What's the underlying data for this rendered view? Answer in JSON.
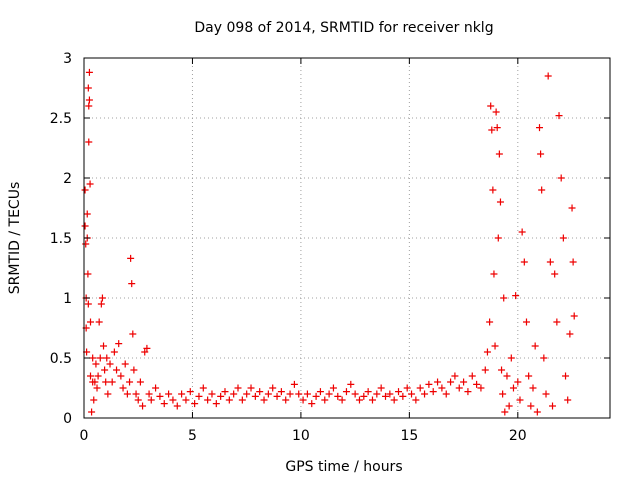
{
  "chart_data": {
    "type": "scatter",
    "title": "Day 098 of 2014, SRMTID for receiver nklg",
    "xlabel": "GPS time / hours",
    "ylabel": "SRMTID / TECUs",
    "xlim": [
      0,
      24.25
    ],
    "ylim": [
      0,
      3
    ],
    "x_ticks": [
      0,
      5,
      10,
      15,
      20
    ],
    "y_ticks": [
      0,
      0.5,
      1,
      1.5,
      2,
      2.5,
      3
    ],
    "x_tick_labels": [
      "0",
      "5",
      "10",
      "15",
      "20"
    ],
    "y_tick_labels": [
      "0",
      "0.5",
      "1",
      "1.5",
      "2",
      "2.5",
      "3"
    ],
    "grid": true,
    "marker": "plus",
    "color": "#ee0000",
    "series": [
      {
        "name": "SRMTID",
        "points": [
          [
            0.05,
            1.9
          ],
          [
            0.05,
            1.6
          ],
          [
            0.08,
            1.45
          ],
          [
            0.1,
            1.0
          ],
          [
            0.1,
            0.75
          ],
          [
            0.12,
            0.55
          ],
          [
            0.15,
            1.7
          ],
          [
            0.15,
            1.5
          ],
          [
            0.18,
            1.2
          ],
          [
            0.2,
            0.95
          ],
          [
            0.2,
            2.75
          ],
          [
            0.22,
            2.6
          ],
          [
            0.22,
            2.3
          ],
          [
            0.25,
            2.88
          ],
          [
            0.25,
            2.65
          ],
          [
            0.28,
            1.95
          ],
          [
            0.3,
            0.8
          ],
          [
            0.3,
            0.35
          ],
          [
            0.35,
            0.05
          ],
          [
            0.4,
            0.3
          ],
          [
            0.4,
            0.5
          ],
          [
            0.45,
            0.15
          ],
          [
            0.5,
            0.3
          ],
          [
            0.55,
            0.45
          ],
          [
            0.6,
            0.25
          ],
          [
            0.65,
            0.35
          ],
          [
            0.7,
            0.8
          ],
          [
            0.75,
            0.5
          ],
          [
            0.8,
            0.95
          ],
          [
            0.85,
            1.0
          ],
          [
            0.9,
            0.6
          ],
          [
            0.95,
            0.4
          ],
          [
            1.0,
            0.3
          ],
          [
            1.05,
            0.5
          ],
          [
            1.1,
            0.2
          ],
          [
            1.2,
            0.45
          ],
          [
            1.3,
            0.3
          ],
          [
            1.4,
            0.55
          ],
          [
            1.5,
            0.4
          ],
          [
            1.6,
            0.62
          ],
          [
            1.7,
            0.35
          ],
          [
            1.8,
            0.25
          ],
          [
            1.9,
            0.45
          ],
          [
            2.0,
            0.2
          ],
          [
            2.1,
            0.3
          ],
          [
            2.15,
            1.33
          ],
          [
            2.2,
            1.12
          ],
          [
            2.25,
            0.7
          ],
          [
            2.3,
            0.4
          ],
          [
            2.4,
            0.2
          ],
          [
            2.5,
            0.15
          ],
          [
            2.6,
            0.3
          ],
          [
            2.7,
            0.1
          ],
          [
            2.8,
            0.55
          ],
          [
            2.9,
            0.58
          ],
          [
            3.0,
            0.2
          ],
          [
            3.1,
            0.15
          ],
          [
            3.3,
            0.25
          ],
          [
            3.5,
            0.18
          ],
          [
            3.7,
            0.12
          ],
          [
            3.9,
            0.2
          ],
          [
            4.1,
            0.15
          ],
          [
            4.3,
            0.1
          ],
          [
            4.5,
            0.2
          ],
          [
            4.7,
            0.15
          ],
          [
            4.9,
            0.22
          ],
          [
            5.1,
            0.12
          ],
          [
            5.3,
            0.18
          ],
          [
            5.5,
            0.25
          ],
          [
            5.7,
            0.15
          ],
          [
            5.9,
            0.2
          ],
          [
            6.1,
            0.12
          ],
          [
            6.3,
            0.18
          ],
          [
            6.5,
            0.22
          ],
          [
            6.7,
            0.15
          ],
          [
            6.9,
            0.2
          ],
          [
            7.1,
            0.25
          ],
          [
            7.3,
            0.15
          ],
          [
            7.5,
            0.2
          ],
          [
            7.7,
            0.25
          ],
          [
            7.9,
            0.18
          ],
          [
            8.1,
            0.22
          ],
          [
            8.3,
            0.15
          ],
          [
            8.5,
            0.2
          ],
          [
            8.7,
            0.25
          ],
          [
            8.9,
            0.18
          ],
          [
            9.1,
            0.22
          ],
          [
            9.3,
            0.15
          ],
          [
            9.5,
            0.2
          ],
          [
            9.7,
            0.28
          ],
          [
            9.9,
            0.2
          ],
          [
            10.1,
            0.15
          ],
          [
            10.3,
            0.2
          ],
          [
            10.5,
            0.12
          ],
          [
            10.7,
            0.18
          ],
          [
            10.9,
            0.22
          ],
          [
            11.1,
            0.15
          ],
          [
            11.3,
            0.2
          ],
          [
            11.5,
            0.25
          ],
          [
            11.7,
            0.18
          ],
          [
            11.9,
            0.15
          ],
          [
            12.1,
            0.22
          ],
          [
            12.3,
            0.28
          ],
          [
            12.5,
            0.2
          ],
          [
            12.7,
            0.15
          ],
          [
            12.9,
            0.18
          ],
          [
            13.1,
            0.22
          ],
          [
            13.3,
            0.15
          ],
          [
            13.5,
            0.2
          ],
          [
            13.7,
            0.25
          ],
          [
            13.9,
            0.18
          ],
          [
            14.1,
            0.2
          ],
          [
            14.3,
            0.15
          ],
          [
            14.5,
            0.22
          ],
          [
            14.7,
            0.18
          ],
          [
            14.9,
            0.25
          ],
          [
            15.1,
            0.2
          ],
          [
            15.3,
            0.15
          ],
          [
            15.5,
            0.25
          ],
          [
            15.7,
            0.2
          ],
          [
            15.9,
            0.28
          ],
          [
            16.1,
            0.22
          ],
          [
            16.3,
            0.3
          ],
          [
            16.5,
            0.25
          ],
          [
            16.7,
            0.2
          ],
          [
            16.9,
            0.3
          ],
          [
            17.1,
            0.35
          ],
          [
            17.3,
            0.25
          ],
          [
            17.5,
            0.3
          ],
          [
            17.7,
            0.22
          ],
          [
            17.9,
            0.35
          ],
          [
            18.1,
            0.28
          ],
          [
            18.3,
            0.25
          ],
          [
            18.5,
            0.4
          ],
          [
            18.6,
            0.55
          ],
          [
            18.7,
            0.8
          ],
          [
            18.75,
            2.6
          ],
          [
            18.8,
            2.4
          ],
          [
            18.85,
            1.9
          ],
          [
            18.9,
            1.2
          ],
          [
            18.95,
            0.6
          ],
          [
            19.0,
            2.55
          ],
          [
            19.05,
            2.42
          ],
          [
            19.1,
            1.5
          ],
          [
            19.15,
            2.2
          ],
          [
            19.2,
            1.8
          ],
          [
            19.25,
            0.4
          ],
          [
            19.3,
            0.2
          ],
          [
            19.35,
            1.0
          ],
          [
            19.4,
            0.05
          ],
          [
            19.5,
            0.35
          ],
          [
            19.6,
            0.1
          ],
          [
            19.7,
            0.5
          ],
          [
            19.8,
            0.25
          ],
          [
            19.9,
            1.02
          ],
          [
            20.0,
            0.3
          ],
          [
            20.1,
            0.15
          ],
          [
            20.2,
            1.55
          ],
          [
            20.3,
            1.3
          ],
          [
            20.4,
            0.8
          ],
          [
            20.5,
            0.35
          ],
          [
            20.6,
            0.1
          ],
          [
            20.7,
            0.25
          ],
          [
            20.8,
            0.6
          ],
          [
            20.9,
            0.05
          ],
          [
            21.0,
            2.42
          ],
          [
            21.05,
            2.2
          ],
          [
            21.1,
            1.9
          ],
          [
            21.2,
            0.5
          ],
          [
            21.3,
            0.2
          ],
          [
            21.4,
            2.85
          ],
          [
            21.5,
            1.3
          ],
          [
            21.6,
            0.1
          ],
          [
            21.7,
            1.2
          ],
          [
            21.8,
            0.8
          ],
          [
            21.9,
            2.52
          ],
          [
            22.0,
            2.0
          ],
          [
            22.1,
            1.5
          ],
          [
            22.2,
            0.35
          ],
          [
            22.3,
            0.15
          ],
          [
            22.4,
            0.7
          ],
          [
            22.5,
            1.75
          ],
          [
            22.55,
            1.3
          ],
          [
            22.6,
            0.85
          ]
        ]
      }
    ]
  }
}
